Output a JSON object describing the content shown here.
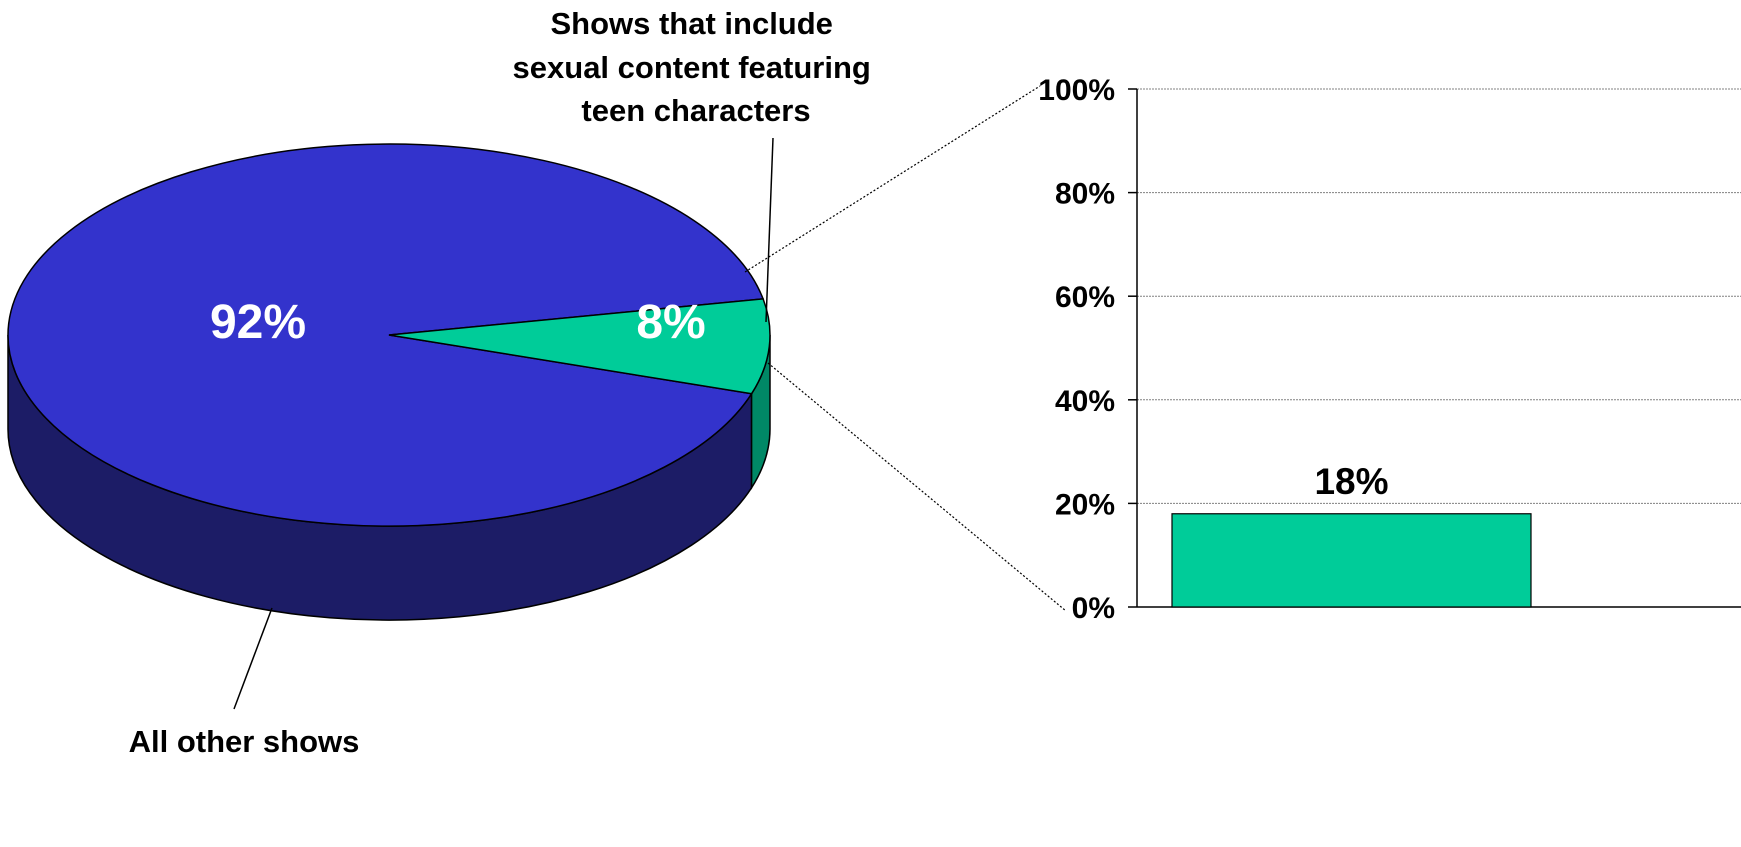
{
  "chart_data": [
    {
      "type": "pie",
      "slices": [
        {
          "label": "All other shows",
          "value": 92,
          "value_label": "92%",
          "color": "#3333CC",
          "side_color": "#1C1C66"
        },
        {
          "label_lines": [
            "Shows that include",
            "sexual content featuring",
            "teen characters"
          ],
          "value": 8,
          "value_label": "8%",
          "color": "#00CC99",
          "side_color": "#008866"
        }
      ]
    },
    {
      "type": "bar",
      "categories": [
        ""
      ],
      "values": [
        18
      ],
      "value_labels": [
        "18%"
      ],
      "bar_color": "#00CC99",
      "ylim": [
        0,
        100
      ],
      "yticks": [
        0,
        20,
        40,
        60,
        80,
        100
      ],
      "ytick_labels": [
        "0%",
        "20%",
        "40%",
        "60%",
        "80%",
        "100%"
      ],
      "grid": true
    }
  ]
}
